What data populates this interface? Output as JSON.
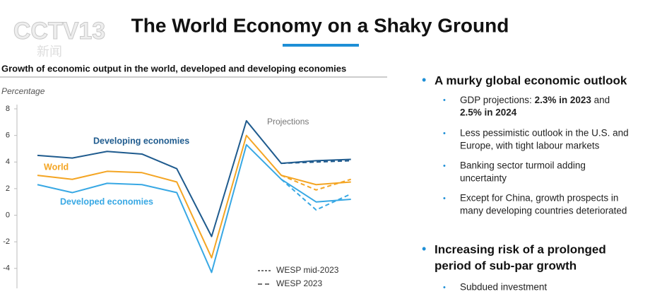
{
  "header": {
    "logo": "CCTV13",
    "logo_sub": "新闻",
    "title": "The World Economy on a Shaky Ground"
  },
  "chart_data": {
    "type": "line",
    "title": "Growth of economic output in the world, developed and developing economies",
    "y_label": "Percentage",
    "categories": [
      null,
      null,
      null,
      null,
      null,
      null,
      null,
      null,
      null,
      null
    ],
    "ylim": [
      -5.5,
      8
    ],
    "yticks": [
      8,
      6,
      4,
      2,
      0,
      -2,
      -4
    ],
    "annotation": "Projections",
    "legend": [
      {
        "label": "WESP mid-2023",
        "dash": "short"
      },
      {
        "label": "WESP 2023",
        "dash": "long"
      }
    ],
    "series": [
      {
        "name": "Developing economies",
        "color": "#1f5b8e",
        "values": [
          4.5,
          4.3,
          4.8,
          4.6,
          3.5,
          -1.6,
          7.1,
          3.9,
          4.1,
          4.2
        ]
      },
      {
        "name": "World",
        "color": "#f4a523",
        "values": [
          3.0,
          2.7,
          3.3,
          3.2,
          2.5,
          -3.2,
          6.0,
          3.0,
          2.3,
          2.5
        ]
      },
      {
        "name": "Developed economies",
        "color": "#38a8e4",
        "values": [
          2.3,
          1.7,
          2.4,
          2.3,
          1.7,
          -4.3,
          5.3,
          2.7,
          1.0,
          1.2
        ]
      },
      {
        "color": "#1f5b8e",
        "dash": "long",
        "values": [
          null,
          null,
          null,
          null,
          null,
          null,
          null,
          3.9,
          4.0,
          4.1
        ]
      },
      {
        "color": "#f4a523",
        "dash": "long",
        "values": [
          null,
          null,
          null,
          null,
          null,
          null,
          null,
          3.0,
          1.9,
          2.7
        ]
      },
      {
        "color": "#38a8e4",
        "dash": "long",
        "values": [
          null,
          null,
          null,
          null,
          null,
          null,
          null,
          2.7,
          0.4,
          1.6
        ]
      }
    ]
  },
  "panel": {
    "heading1": "A murky global economic outlook",
    "items": [
      [
        "GDP projections: ",
        "2.3% in 2023",
        " and",
        "2.5% in 2024"
      ],
      [
        "Less pessimistic outlook in the U.S. and",
        "Europe, with tight labour markets"
      ],
      [
        "Banking sector turmoil adding",
        "uncertainty"
      ],
      [
        "Except for China, growth prospects in",
        "many developing countries deteriorated"
      ]
    ],
    "heading2": [
      "Increasing risk of a prolonged",
      "period of sub-par growth"
    ],
    "items2": [
      "Subdued investment"
    ]
  }
}
